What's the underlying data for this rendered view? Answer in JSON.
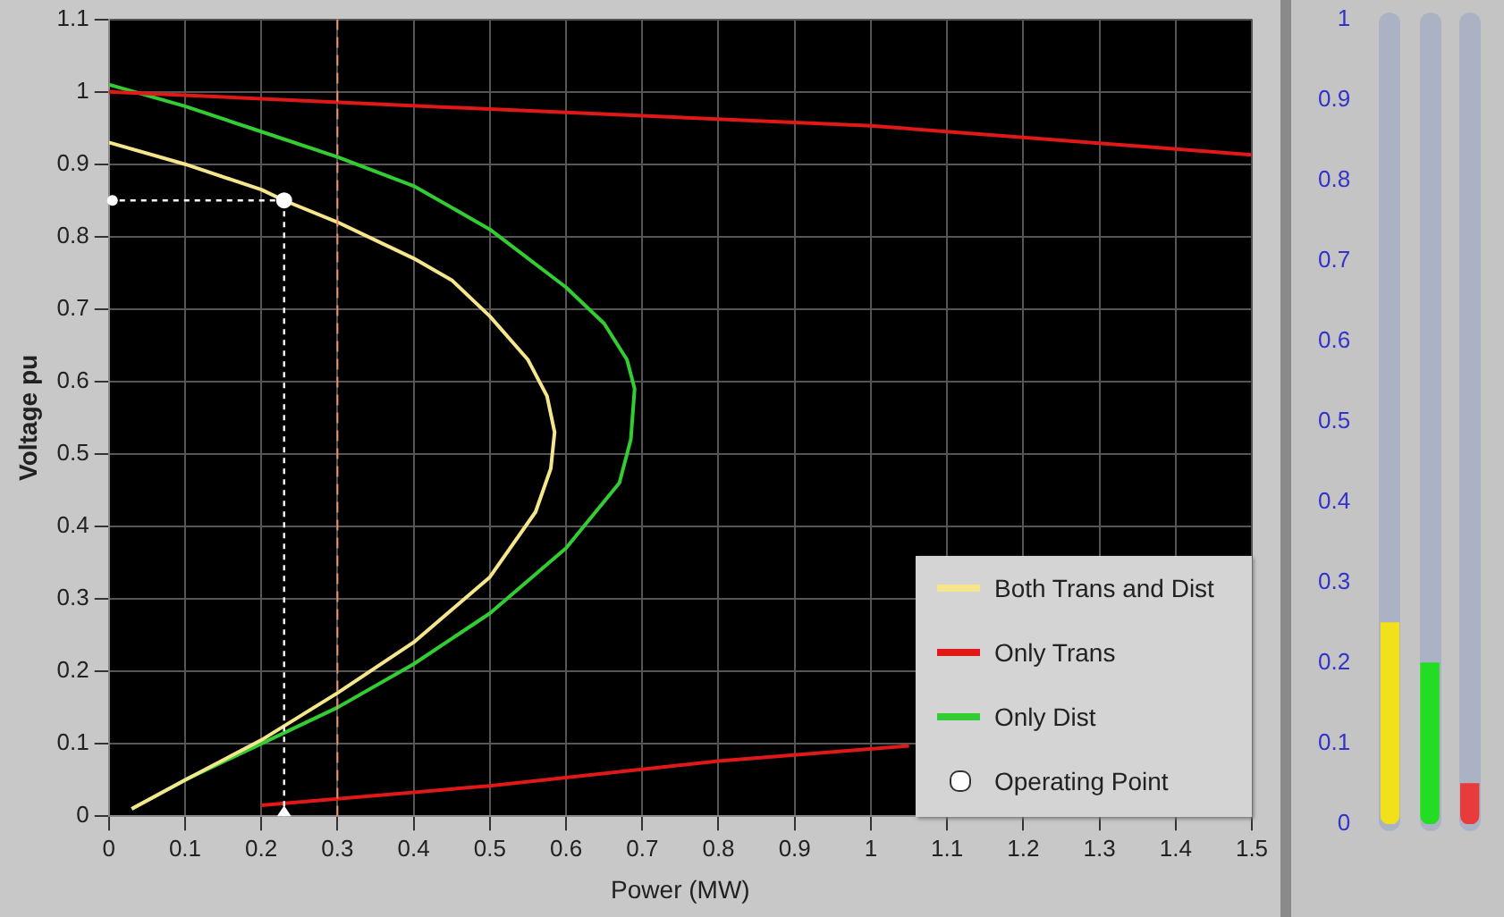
{
  "chart_data": [
    {
      "type": "line",
      "xlabel": "Power (MW)",
      "ylabel": "Voltage pu",
      "xlim": [
        0,
        1.5
      ],
      "xticks": [
        0,
        0.1,
        0.2,
        0.3,
        0.4,
        0.5,
        0.6,
        0.7,
        0.8,
        0.9,
        1,
        1.1,
        1.2,
        1.3,
        1.4,
        1.5
      ],
      "ylim": [
        0,
        1.1
      ],
      "yticks": [
        0,
        0.1,
        0.2,
        0.3,
        0.4,
        0.5,
        0.6,
        0.7,
        0.8,
        0.9,
        1,
        1.1
      ],
      "grid": true,
      "legend": "bottom right",
      "series": [
        {
          "name": "Both Trans and Dist",
          "color": "#f5e68c",
          "x": [
            0,
            0.1,
            0.2,
            0.23,
            0.3,
            0.4,
            0.45,
            0.5,
            0.55,
            0.575,
            0.585,
            0.58,
            0.56,
            0.5,
            0.4,
            0.3,
            0.2,
            0.1,
            0.03
          ],
          "values": [
            0.93,
            0.9,
            0.865,
            0.85,
            0.82,
            0.77,
            0.74,
            0.69,
            0.63,
            0.58,
            0.53,
            0.48,
            0.42,
            0.33,
            0.24,
            0.17,
            0.105,
            0.05,
            0.01
          ]
        },
        {
          "name": "Only Trans",
          "color": "#e01818",
          "x": [
            0,
            0.5,
            1,
            1.5,
            null,
            0.2,
            0.5,
            0.8,
            1.05
          ],
          "values": [
            1.0,
            0.976,
            0.953,
            0.913,
            null,
            0.015,
            0.042,
            0.076,
            0.097
          ]
        },
        {
          "name": "Only Dist",
          "color": "#33cc33",
          "x": [
            0,
            0.1,
            0.2,
            0.3,
            0.4,
            0.5,
            0.6,
            0.65,
            0.68,
            0.69,
            0.685,
            0.67,
            0.6,
            0.5,
            0.4,
            0.3,
            0.2,
            0.1,
            0.03
          ],
          "values": [
            1.01,
            0.98,
            0.945,
            0.91,
            0.87,
            0.81,
            0.73,
            0.68,
            0.63,
            0.59,
            0.52,
            0.46,
            0.37,
            0.28,
            0.21,
            0.15,
            0.1,
            0.05,
            0.01
          ]
        },
        {
          "name": "Operating Point",
          "type": "scatter",
          "marker": "circle",
          "color": "#ffffff",
          "x": [
            0.23
          ],
          "values": [
            0.85
          ]
        }
      ],
      "ref_lines": [
        {
          "axis": "x",
          "value": 0.3,
          "color": "#e8906a",
          "line_style": "dashed"
        }
      ]
    },
    {
      "type": "bar",
      "categories": [
        null,
        null,
        null
      ],
      "values": [
        0.25,
        0.2,
        0.05
      ],
      "colors": [
        "#f2e01a",
        "#22dd22",
        "#e83c3c"
      ],
      "ylim": [
        0,
        1
      ],
      "yticks": [
        0,
        0.1,
        0.2,
        0.3,
        0.4,
        0.5,
        0.6,
        0.7,
        0.8,
        0.9,
        1
      ]
    }
  ]
}
